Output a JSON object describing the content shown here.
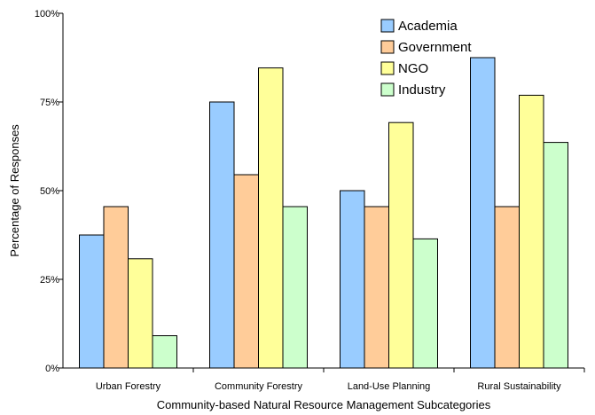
{
  "chart_data": {
    "type": "bar",
    "title": "",
    "xlabel": "Community-based Natural Resource Management Subcategories",
    "ylabel": "Percentage of Responses",
    "categories": [
      "Urban Forestry",
      "Community Forestry",
      "Land-Use Planning",
      "Rural Sustainability"
    ],
    "series": [
      {
        "name": "Academia",
        "color": "#99ccff",
        "values": [
          37.5,
          75.0,
          50.0,
          87.5
        ]
      },
      {
        "name": "Government",
        "color": "#ffcc99",
        "values": [
          45.5,
          54.5,
          45.5,
          45.5
        ]
      },
      {
        "name": "NGO",
        "color": "#ffff99",
        "values": [
          30.8,
          84.6,
          69.2,
          76.9
        ]
      },
      {
        "name": "Industry",
        "color": "#ccffcc",
        "values": [
          9.1,
          45.5,
          36.4,
          63.6
        ]
      }
    ],
    "ylim": [
      0,
      100
    ],
    "yticks": [
      0,
      25,
      50,
      75,
      100
    ],
    "ytick_labels": [
      "0%",
      "25%",
      "50%",
      "75%",
      "100%"
    ],
    "grid": false,
    "legend_position": "top-right-inside"
  }
}
